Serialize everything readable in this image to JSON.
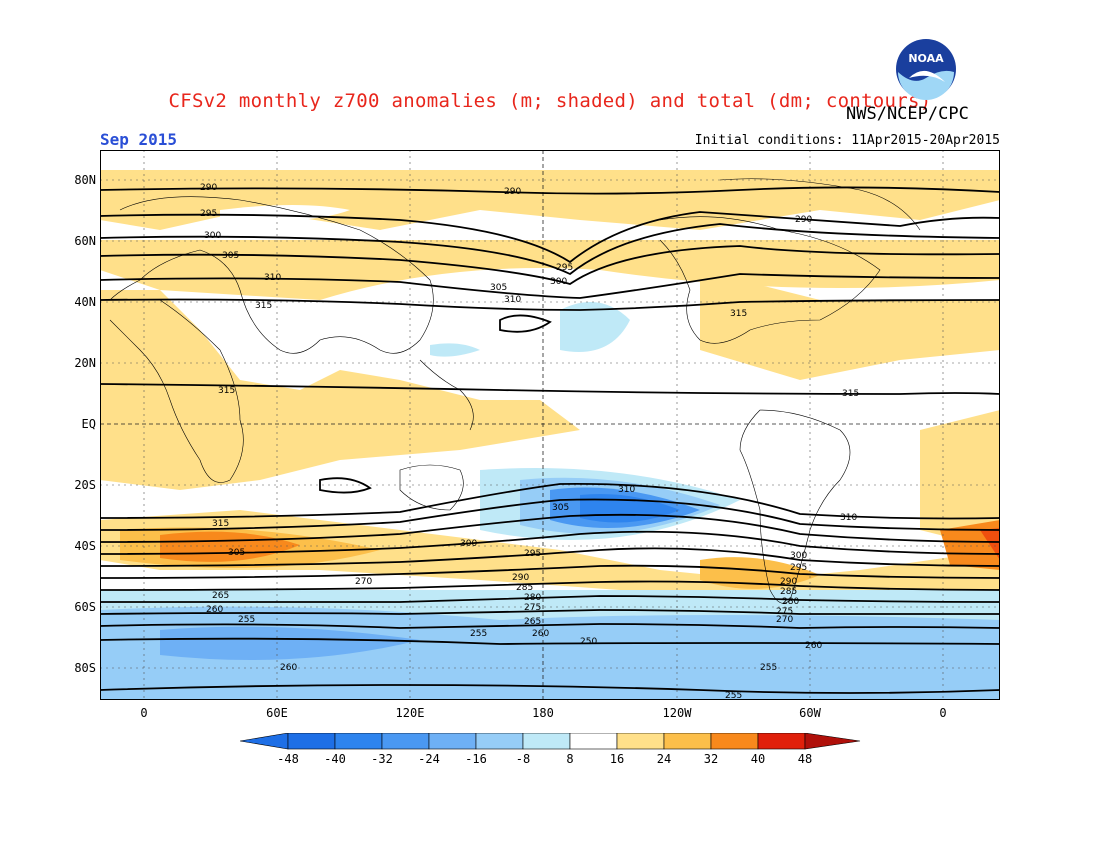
{
  "header": {
    "title": "CFSv2 monthly z700 anomalies (m; shaded) and total (dm; contours)",
    "agency": "NWS/NCEP/CPC",
    "valid_month": "Sep 2015",
    "initial_conditions": "Initial conditions: 11Apr2015-20Apr2015",
    "logo_text": "NOAA"
  },
  "axes": {
    "lat_labels": [
      "80N",
      "60N",
      "40N",
      "20N",
      "EQ",
      "20S",
      "40S",
      "60S",
      "80S"
    ],
    "lon_labels": [
      "0",
      "60E",
      "120E",
      "180",
      "120W",
      "60W",
      "0"
    ]
  },
  "colorbar": {
    "ticks": [
      "-48",
      "-40",
      "-32",
      "-24",
      "-16",
      "-8",
      "8",
      "16",
      "24",
      "32",
      "40",
      "48"
    ],
    "colors": [
      "#1e6fe6",
      "#2e84ee",
      "#4a98f2",
      "#6eb0f5",
      "#96cdf7",
      "#bfe9f7",
      "#ffffff",
      "#ffe08a",
      "#fcbf4a",
      "#f8891c",
      "#f04f0e",
      "#e0200a",
      "#b0100a"
    ]
  },
  "contour_labels": {
    "nh": [
      "290",
      "290",
      "290",
      "295",
      "295",
      "300",
      "300",
      "305",
      "305",
      "310",
      "310",
      "315",
      "315",
      "315",
      "315"
    ],
    "sh": [
      "310",
      "310",
      "315",
      "300",
      "305",
      "305",
      "300",
      "295",
      "295",
      "290",
      "290",
      "285",
      "285",
      "280",
      "280",
      "275",
      "275",
      "270",
      "270",
      "265",
      "265",
      "260",
      "260",
      "255",
      "255",
      "255",
      "250",
      "260",
      "260",
      "255"
    ]
  }
}
